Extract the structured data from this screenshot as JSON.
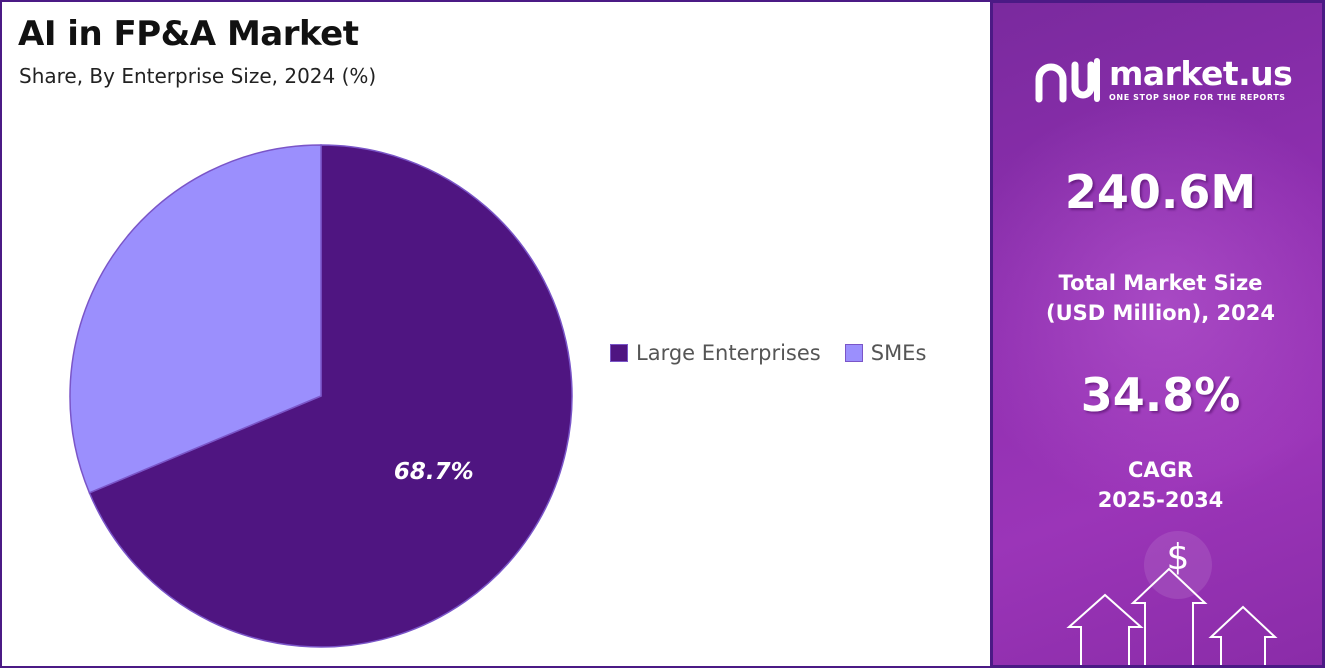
{
  "chart_data": {
    "type": "pie",
    "title": "AI in FP&A Market",
    "subtitle": "Share, By Enterprise Size, 2024 (%)",
    "slices": [
      {
        "label": "Large Enterprises",
        "value": 68.7,
        "display_label": "68.7%",
        "color": "#4f1581"
      },
      {
        "label": "SMEs",
        "value": 31.3,
        "display_label": "",
        "color": "#9b8ffd"
      }
    ],
    "legend_position": "right"
  },
  "sidebar": {
    "brand_name": "market.us",
    "brand_tagline": "ONE STOP SHOP FOR THE REPORTS",
    "market_size_value": "240.6M",
    "market_size_label_line1": "Total Market Size",
    "market_size_label_line2": "(USD Million), 2024",
    "cagr_value": "34.8%",
    "cagr_label_line1": "CAGR",
    "cagr_label_line2": "2025-2034",
    "currency_symbol": "$"
  },
  "colors": {
    "accent": "#4b1a85",
    "sidebar": "#8f2fb0"
  }
}
